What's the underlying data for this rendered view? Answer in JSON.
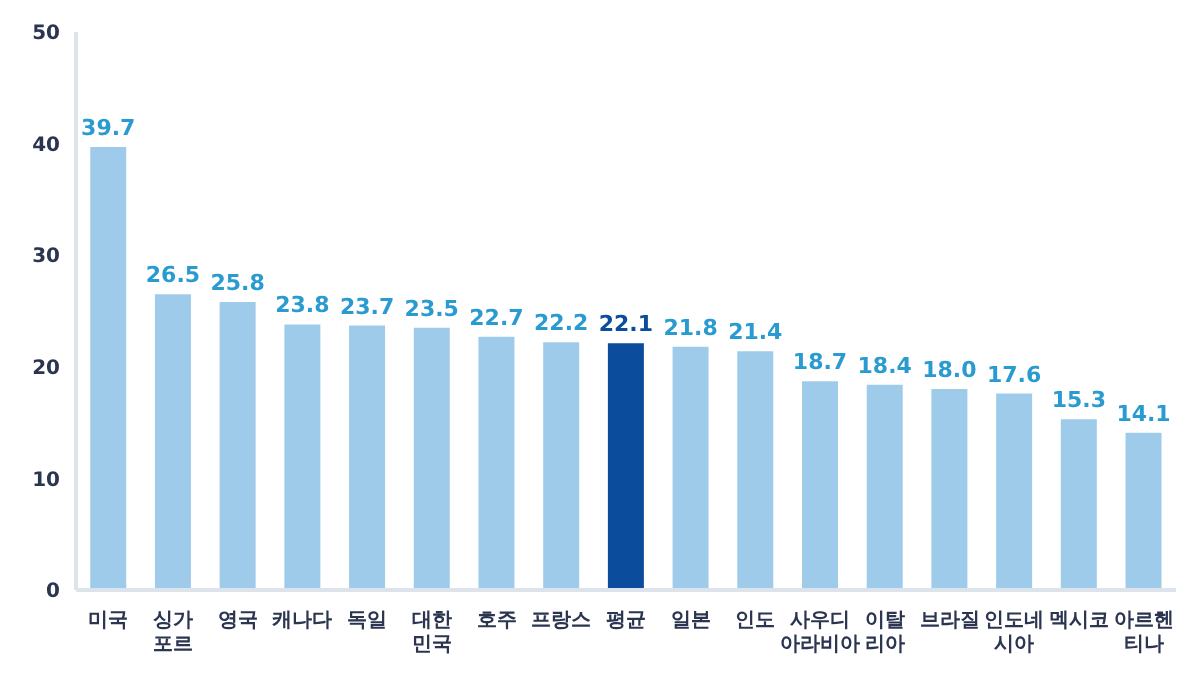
{
  "chart_data": {
    "type": "bar",
    "categories": [
      "미국",
      "싱가포르",
      "영국",
      "캐나다",
      "독일",
      "대한민국",
      "호주",
      "프랑스",
      "평균",
      "일본",
      "인도",
      "사우디 아라비아",
      "이탈리아",
      "브라질",
      "인도네시아",
      "멕시코",
      "아르헨티나"
    ],
    "values": [
      39.7,
      26.5,
      25.8,
      23.8,
      23.7,
      23.5,
      22.7,
      22.2,
      22.1,
      21.8,
      21.4,
      18.7,
      18.4,
      18.0,
      17.6,
      15.3,
      14.1
    ],
    "colors": [
      "#9fcbeb",
      "#9fcbeb",
      "#9fcbeb",
      "#9fcbeb",
      "#9fcbeb",
      "#9fcbeb",
      "#9fcbeb",
      "#9fcbeb",
      "#0b4c9c",
      "#9fcbeb",
      "#9fcbeb",
      "#9fcbeb",
      "#9fcbeb",
      "#9fcbeb",
      "#9fcbeb",
      "#9fcbeb",
      "#9fcbeb"
    ],
    "ylim": [
      0,
      50
    ],
    "yticks": [
      0,
      10,
      20,
      30,
      40,
      50
    ],
    "value_labels": [
      "39.7",
      "26.5",
      "25.8",
      "23.8",
      "23.7",
      "23.5",
      "22.7",
      "22.2",
      "22.1",
      "21.8",
      "21.4",
      "18.7",
      "18.4",
      "18.0",
      "17.6",
      "15.3",
      "14.1"
    ],
    "grid": false,
    "legend": false
  }
}
